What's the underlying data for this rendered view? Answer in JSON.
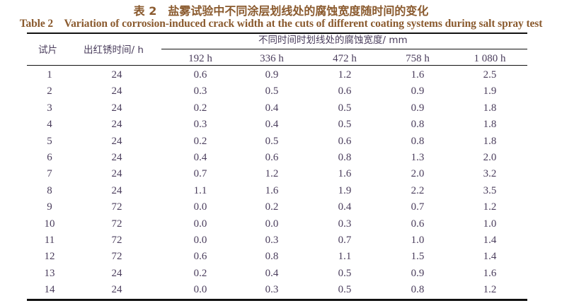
{
  "caption": {
    "zh": "表 2　盐雾试验中不同涂层划线处的腐蚀宽度随时间的变化",
    "en": "Table 2　Variation of corrosion-induced crack width at the cuts of different coating systems during salt spray test"
  },
  "table": {
    "headers": {
      "specimen": "试片",
      "red_rust_time": "出红锈时间/ h",
      "group": "不同时间时划线处的腐蚀宽度/ mm",
      "times": [
        "192 h",
        "336 h",
        "472 h",
        "758 h",
        "1 080 h"
      ]
    },
    "rows": [
      [
        "1",
        "24",
        "0.6",
        "0.9",
        "1.2",
        "1.6",
        "2.5"
      ],
      [
        "2",
        "24",
        "0.3",
        "0.5",
        "0.6",
        "0.9",
        "1.9"
      ],
      [
        "3",
        "24",
        "0.2",
        "0.4",
        "0.5",
        "0.9",
        "1.8"
      ],
      [
        "4",
        "24",
        "0.3",
        "0.4",
        "0.5",
        "0.8",
        "1.8"
      ],
      [
        "5",
        "24",
        "0.2",
        "0.5",
        "0.6",
        "0.8",
        "1.8"
      ],
      [
        "6",
        "24",
        "0.4",
        "0.6",
        "0.8",
        "1.3",
        "2.0"
      ],
      [
        "7",
        "24",
        "0.7",
        "1.2",
        "1.6",
        "2.0",
        "3.2"
      ],
      [
        "8",
        "24",
        "1.1",
        "1.6",
        "1.9",
        "2.2",
        "3.5"
      ],
      [
        "9",
        "72",
        "0.0",
        "0.2",
        "0.4",
        "0.7",
        "1.2"
      ],
      [
        "10",
        "72",
        "0.0",
        "0.0",
        "0.3",
        "0.6",
        "1.0"
      ],
      [
        "11",
        "72",
        "0.0",
        "0.3",
        "0.7",
        "1.0",
        "1.4"
      ],
      [
        "12",
        "72",
        "0.6",
        "0.8",
        "1.1",
        "1.5",
        "1.4"
      ],
      [
        "13",
        "24",
        "0.2",
        "0.4",
        "0.5",
        "0.9",
        "1.6"
      ],
      [
        "14",
        "24",
        "0.0",
        "0.3",
        "0.5",
        "0.8",
        "1.2"
      ]
    ]
  },
  "colors": {
    "caption": "#8a5a2e",
    "text": "#4a3d5c",
    "rule": "#111111"
  }
}
